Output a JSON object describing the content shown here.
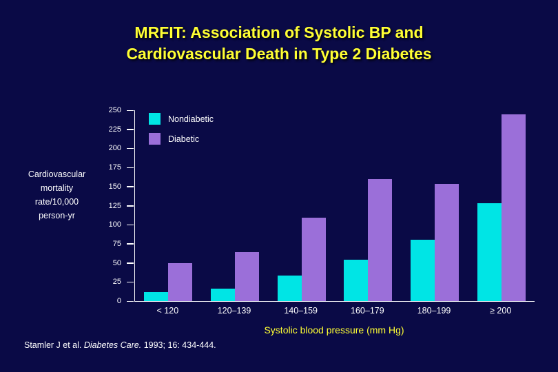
{
  "slide": {
    "title_line1": "MRFIT: Association of Systolic BP and",
    "title_line2": "Cardiovascular Death in Type 2 Diabetes",
    "footer_prefix": "Stamler J et al. ",
    "footer_italic": "Diabetes Care.",
    "footer_suffix": " 1993; 16: 434-444."
  },
  "chart_data": {
    "type": "bar",
    "title": "MRFIT: Association of Systolic BP and Cardiovascular Death in Type 2 Diabetes",
    "categories": [
      "< 120",
      "120–139",
      "140–159",
      "160–179",
      "180–199",
      "≥ 200"
    ],
    "series": [
      {
        "name": "Nondiabetic",
        "color": "#00e5e5",
        "values": [
          12,
          16,
          33,
          54,
          80,
          128
        ]
      },
      {
        "name": "Diabetic",
        "color": "#9b6fd9",
        "values": [
          50,
          64,
          109,
          160,
          153,
          245
        ]
      }
    ],
    "ylabel_lines": [
      "Cardiovascular",
      "mortality",
      "rate/10,000",
      "person-yr"
    ],
    "xlabel": "Systolic blood pressure (mm Hg)",
    "ylim": [
      0,
      250
    ],
    "yticks": [
      0,
      25,
      50,
      75,
      100,
      125,
      150,
      175,
      200,
      225,
      250
    ],
    "legend_position": "top-left",
    "grid": false,
    "background": "#0a0a46",
    "title_color": "#ffff33"
  }
}
